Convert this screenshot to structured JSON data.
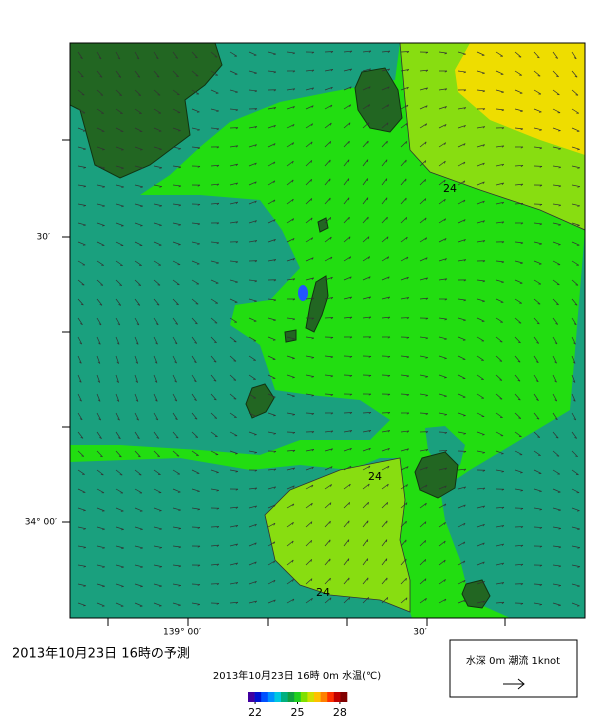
{
  "map": {
    "title": "2013年10月23日  16時の予測",
    "subtitle": "2013年10月23日 16時 0m 水温(℃)",
    "lat_labels": [
      "30′",
      "34° 00′"
    ],
    "lon_labels": [
      "139° 00′",
      "30′"
    ],
    "contour_labels": [
      "24",
      "24",
      "24"
    ],
    "legend": "水深 0m  潮流  1knot",
    "colorbar": {
      "range": [
        21.5,
        28.5
      ],
      "ticks": [
        22,
        25,
        28
      ],
      "colors": [
        "#4000a0",
        "#0010d0",
        "#0050ff",
        "#0090ff",
        "#00c8e0",
        "#00b080",
        "#10a040",
        "#20d020",
        "#80e000",
        "#d0e000",
        "#ffc000",
        "#ff8000",
        "#ff3000",
        "#c00000",
        "#800000"
      ]
    }
  }
}
